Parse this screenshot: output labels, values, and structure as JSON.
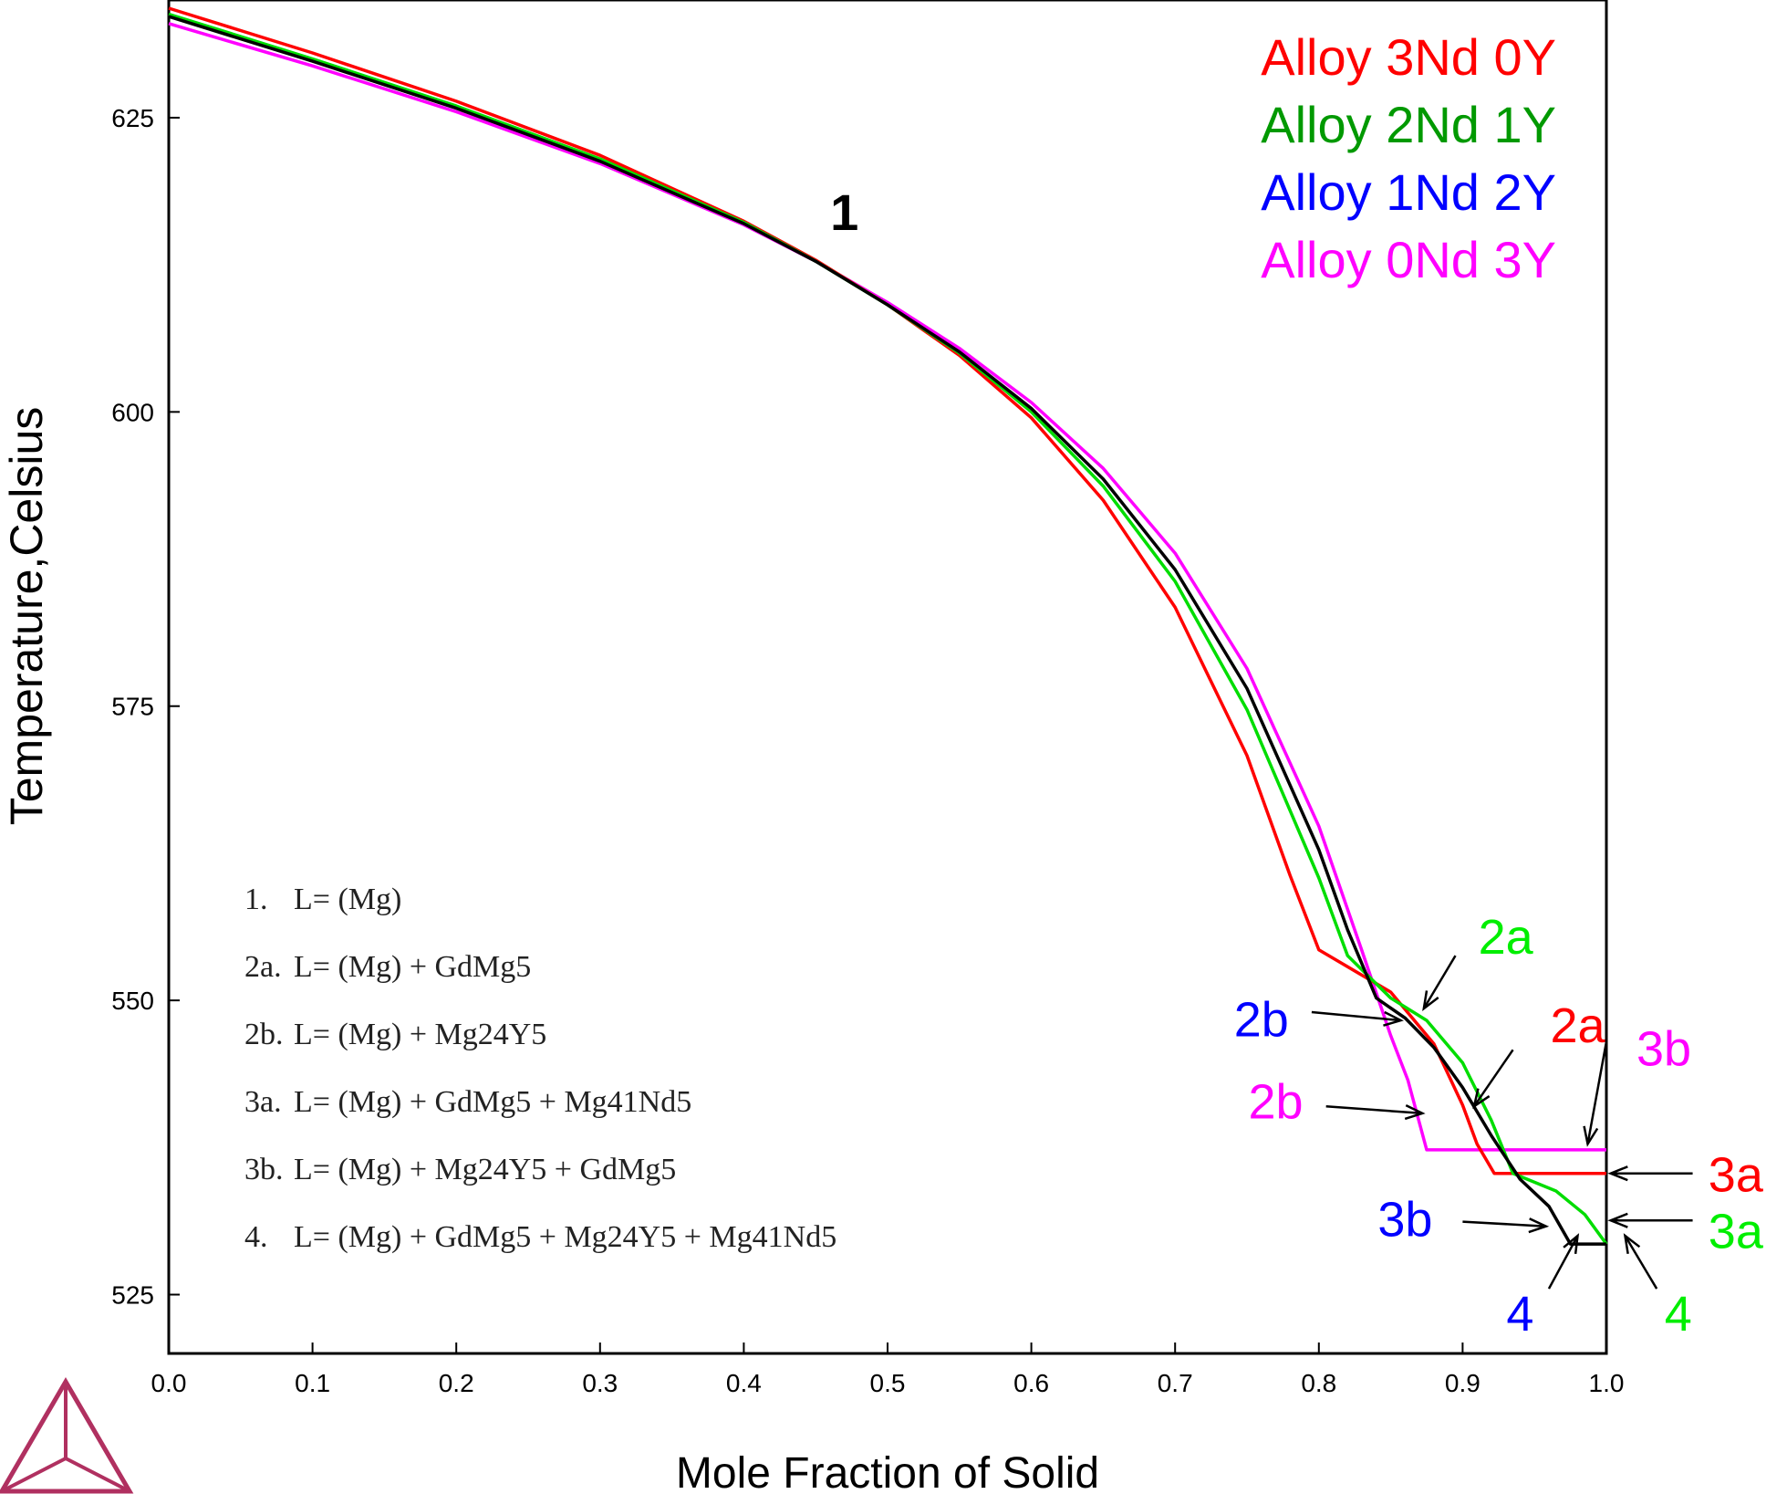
{
  "chart_data": {
    "type": "line",
    "xlabel": "Mole Fraction of Solid",
    "ylabel": "Temperature,Celsius",
    "xlim": [
      0.0,
      1.0
    ],
    "ylim": [
      520,
      635
    ],
    "x_ticks": [
      "0.0",
      "0.1",
      "0.2",
      "0.3",
      "0.4",
      "0.5",
      "0.6",
      "0.7",
      "0.8",
      "0.9",
      "1.0"
    ],
    "y_ticks": [
      "525",
      "550",
      "575",
      "600",
      "625"
    ],
    "grid": false,
    "legend_position": "top-right",
    "series": [
      {
        "name": "Alloy 3Nd 0Y",
        "color": "#ff0000",
        "points": [
          [
            0.0,
            634.3
          ],
          [
            0.1,
            630.5
          ],
          [
            0.2,
            626.4
          ],
          [
            0.3,
            621.8
          ],
          [
            0.4,
            616.2
          ],
          [
            0.45,
            612.9
          ],
          [
            0.5,
            609.1
          ],
          [
            0.55,
            604.8
          ],
          [
            0.6,
            599.5
          ],
          [
            0.65,
            592.5
          ],
          [
            0.7,
            583.4
          ],
          [
            0.75,
            570.8
          ],
          [
            0.78,
            560.6
          ],
          [
            0.8,
            554.3
          ],
          [
            0.85,
            550.7
          ],
          [
            0.88,
            546.3
          ],
          [
            0.9,
            541.1
          ],
          [
            0.91,
            537.8
          ],
          [
            0.922,
            535.3
          ],
          [
            1.0,
            535.3
          ]
        ]
      },
      {
        "name": "Alloy 2Nd 1Y",
        "color": "#009900",
        "points": [
          [
            0.0,
            633.8
          ],
          [
            0.1,
            630.0
          ],
          [
            0.2,
            626.0
          ],
          [
            0.3,
            621.5
          ],
          [
            0.4,
            616.1
          ],
          [
            0.45,
            612.8
          ],
          [
            0.5,
            609.1
          ],
          [
            0.55,
            605.0
          ],
          [
            0.6,
            600.0
          ],
          [
            0.65,
            593.7
          ],
          [
            0.7,
            585.6
          ],
          [
            0.75,
            574.7
          ],
          [
            0.8,
            560.4
          ],
          [
            0.82,
            553.8
          ],
          [
            0.85,
            550.2
          ],
          [
            0.875,
            548.3
          ],
          [
            0.9,
            544.7
          ],
          [
            0.92,
            539.8
          ],
          [
            0.935,
            535.3
          ],
          [
            0.965,
            533.8
          ],
          [
            0.985,
            531.8
          ],
          [
            1.0,
            529.3
          ]
        ]
      },
      {
        "name": "Alloy 1Nd 2Y",
        "color": "#0000ff",
        "points": [
          [
            0.0,
            633.6
          ],
          [
            0.1,
            629.8
          ],
          [
            0.2,
            625.8
          ],
          [
            0.3,
            621.3
          ],
          [
            0.4,
            616.0
          ],
          [
            0.45,
            612.8
          ],
          [
            0.5,
            609.1
          ],
          [
            0.55,
            605.1
          ],
          [
            0.6,
            600.3
          ],
          [
            0.65,
            594.3
          ],
          [
            0.7,
            586.6
          ],
          [
            0.75,
            576.5
          ],
          [
            0.8,
            562.8
          ],
          [
            0.82,
            556.0
          ],
          [
            0.84,
            550.2
          ],
          [
            0.86,
            548.5
          ],
          [
            0.88,
            546.0
          ],
          [
            0.9,
            542.6
          ],
          [
            0.92,
            538.5
          ],
          [
            0.94,
            534.8
          ],
          [
            0.96,
            532.5
          ],
          [
            0.975,
            529.3
          ],
          [
            1.0,
            529.3
          ]
        ]
      },
      {
        "name": "Alloy 0Nd 3Y",
        "color": "#ff00ff",
        "points": [
          [
            0.0,
            633.0
          ],
          [
            0.1,
            629.4
          ],
          [
            0.2,
            625.5
          ],
          [
            0.3,
            621.1
          ],
          [
            0.4,
            615.9
          ],
          [
            0.45,
            612.8
          ],
          [
            0.5,
            609.3
          ],
          [
            0.55,
            605.4
          ],
          [
            0.6,
            600.8
          ],
          [
            0.65,
            595.2
          ],
          [
            0.7,
            588.0
          ],
          [
            0.75,
            578.2
          ],
          [
            0.8,
            564.8
          ],
          [
            0.83,
            554.2
          ],
          [
            0.85,
            547.0
          ],
          [
            0.862,
            543.2
          ],
          [
            0.875,
            537.3
          ],
          [
            1.0,
            537.3
          ]
        ]
      }
    ],
    "annotations": [
      {
        "text": "1",
        "color": "#000000",
        "x": 0.47,
        "y": 617
      },
      {
        "text": "2a",
        "color": "#00ee00",
        "x": 0.93,
        "y": 555.5
      },
      {
        "text": "2b",
        "color": "#0000ff",
        "x": 0.76,
        "y": 548.5
      },
      {
        "text": "2a",
        "color": "#ff0000",
        "x": 0.98,
        "y": 548.0
      },
      {
        "text": "3b",
        "color": "#ff00ff",
        "x": 1.04,
        "y": 546.0
      },
      {
        "text": "2b",
        "color": "#ff00ff",
        "x": 0.77,
        "y": 541.5
      },
      {
        "text": "3a",
        "color": "#ff0000",
        "x": 1.09,
        "y": 535.3
      },
      {
        "text": "3b",
        "color": "#0000ff",
        "x": 0.86,
        "y": 531.5
      },
      {
        "text": "3a",
        "color": "#00ee00",
        "x": 1.09,
        "y": 530.5
      },
      {
        "text": "4",
        "color": "#0000ff",
        "x": 0.94,
        "y": 523.5
      },
      {
        "text": "4",
        "color": "#00ee00",
        "x": 1.05,
        "y": 523.5
      }
    ],
    "phase_key": [
      {
        "num": "1.",
        "reaction": "L= (Mg)"
      },
      {
        "num": "2a.",
        "reaction": "L= (Mg) + GdMg5"
      },
      {
        "num": "2b.",
        "reaction": "L= (Mg) + Mg24Y5"
      },
      {
        "num": "3a.",
        "reaction": "L= (Mg) + GdMg5 + Mg41Nd5"
      },
      {
        "num": "3b.",
        "reaction": "L= (Mg) + Mg24Y5 + GdMg5"
      },
      {
        "num": "4.",
        "reaction": "L= (Mg) + GdMg5 + Mg24Y5 + Mg41Nd5"
      }
    ]
  },
  "logo": {
    "icon": "thermo-calc-triangle-logo",
    "color": "#b03060"
  }
}
